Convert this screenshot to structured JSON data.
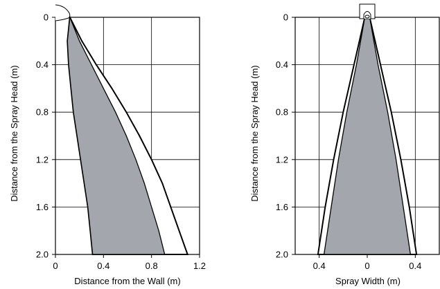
{
  "chart_data": [
    {
      "type": "area",
      "xlabel": "Distance from the Wall (m)",
      "ylabel": "Distance from the Spray Head (m)",
      "xlim": [
        0,
        1.2
      ],
      "ylim": [
        0,
        2.0
      ],
      "y_inverted": true,
      "grid": true,
      "xticks": [
        "0",
        "0.4",
        "0.8",
        "1.2"
      ],
      "yticks": [
        "0",
        "0.4",
        "0.8",
        "1.2",
        "1.6",
        "2.0"
      ],
      "xtick_values": [
        0,
        0.4,
        0.8,
        1.2
      ],
      "ytick_values": [
        0,
        0.4,
        0.8,
        1.2,
        1.6,
        2.0
      ],
      "series": [
        {
          "kind": "outer-envelope",
          "outer": [
            [
              0.12,
              0
            ],
            [
              0.22,
              0.2
            ],
            [
              0.34,
              0.4
            ],
            [
              0.47,
              0.6
            ],
            [
              0.59,
              0.8
            ],
            [
              0.7,
              1.0
            ],
            [
              0.8,
              1.2
            ],
            [
              0.89,
              1.4
            ],
            [
              0.96,
              1.6
            ],
            [
              1.03,
              1.8
            ],
            [
              1.1,
              2.0
            ]
          ],
          "inner": [
            [
              0.12,
              0
            ],
            [
              0.1,
              0.2
            ],
            [
              0.11,
              0.4
            ],
            [
              0.13,
              0.6
            ],
            [
              0.15,
              0.8
            ],
            [
              0.18,
              1.0
            ],
            [
              0.21,
              1.2
            ],
            [
              0.24,
              1.4
            ],
            [
              0.27,
              1.6
            ],
            [
              0.29,
              1.8
            ],
            [
              0.31,
              2.0
            ]
          ]
        },
        {
          "kind": "inner-core",
          "outer": [
            [
              0.12,
              0
            ],
            [
              0.2,
              0.2
            ],
            [
              0.3,
              0.4
            ],
            [
              0.4,
              0.6
            ],
            [
              0.5,
              0.8
            ],
            [
              0.59,
              1.0
            ],
            [
              0.67,
              1.2
            ],
            [
              0.74,
              1.4
            ],
            [
              0.8,
              1.6
            ],
            [
              0.86,
              1.8
            ],
            [
              0.91,
              2.0
            ]
          ],
          "inner": [
            [
              0.12,
              0
            ],
            [
              0.1,
              0.2
            ],
            [
              0.11,
              0.4
            ],
            [
              0.13,
              0.6
            ],
            [
              0.15,
              0.8
            ],
            [
              0.18,
              1.0
            ],
            [
              0.21,
              1.2
            ],
            [
              0.24,
              1.4
            ],
            [
              0.27,
              1.6
            ],
            [
              0.29,
              1.8
            ],
            [
              0.31,
              2.0
            ]
          ]
        }
      ]
    },
    {
      "type": "area",
      "xlabel": "Spray Width (m)",
      "ylabel": "Distance from the Spray Head (m)",
      "xlim": [
        -0.6,
        0.6
      ],
      "ylim": [
        0,
        2.0
      ],
      "y_inverted": true,
      "grid": true,
      "xticks": [
        "0.4",
        "0",
        "0.4"
      ],
      "yticks": [
        "0",
        "0.4",
        "0.8",
        "1.2",
        "1.6",
        "2.0"
      ],
      "xtick_values": [
        -0.4,
        0,
        0.4
      ],
      "ytick_values": [
        0,
        0.4,
        0.8,
        1.2,
        1.6,
        2.0
      ],
      "series": [
        {
          "kind": "outer-envelope",
          "half_width": [
            [
              0,
              0.02
            ],
            [
              0.4,
              0.11
            ],
            [
              0.8,
              0.2
            ],
            [
              1.2,
              0.28
            ],
            [
              1.6,
              0.35
            ],
            [
              2.0,
              0.41
            ]
          ]
        },
        {
          "kind": "inner-core",
          "half_width": [
            [
              0,
              0.02
            ],
            [
              0.4,
              0.09
            ],
            [
              0.8,
              0.17
            ],
            [
              1.2,
              0.24
            ],
            [
              1.6,
              0.3
            ],
            [
              2.0,
              0.36
            ]
          ]
        }
      ]
    }
  ]
}
